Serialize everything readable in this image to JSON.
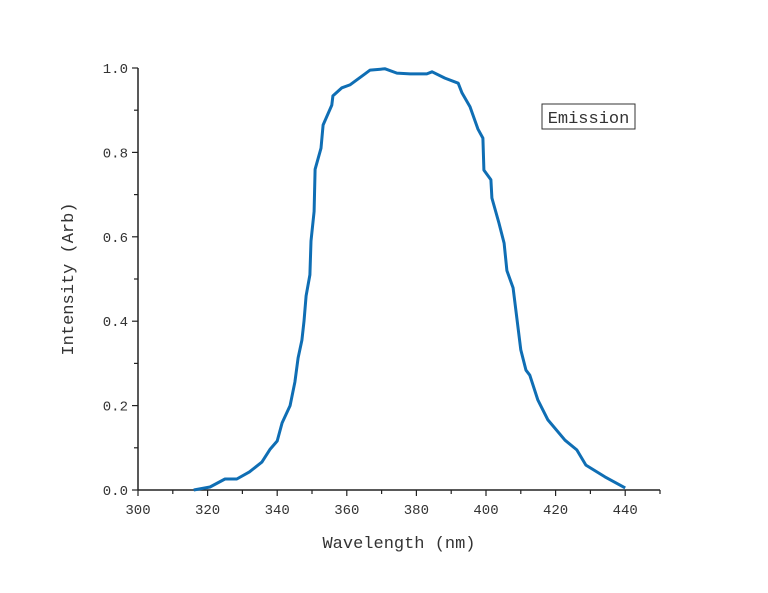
{
  "chart_data": {
    "type": "line",
    "title": "",
    "xlabel": "Wavelength (nm)",
    "ylabel": "Intensity (Arb)",
    "xlim": [
      300,
      450
    ],
    "ylim": [
      0,
      1.0
    ],
    "x_ticks": [
      300,
      320,
      340,
      360,
      380,
      400,
      420,
      440
    ],
    "x_tick_labels": [
      "300",
      "320",
      "340",
      "360",
      "380",
      "400",
      "420",
      "440"
    ],
    "y_ticks": [
      0,
      0.2,
      0.4,
      0.6,
      0.8,
      1.0
    ],
    "y_tick_labels": [
      "0.0",
      "0.2",
      "0.4",
      "0.6",
      "0.8",
      "1.0"
    ],
    "grid": false,
    "legend_position": "top-right",
    "series": [
      {
        "name": "Emission",
        "color": "#0F6EB4",
        "x": [
          316,
          320.7,
          325,
          328.4,
          332,
          335.6,
          338,
          340,
          341.4,
          343.7,
          345.1,
          346,
          347.1,
          347.7,
          348.3,
          349.4,
          349.7,
          350.6,
          350.9,
          352.6,
          353.2,
          355.7,
          356,
          358.6,
          360.9,
          365.2,
          366.7,
          371,
          374.4,
          378.2,
          383,
          384.5,
          388.2,
          392,
          393.1,
          395.4,
          397.7,
          399.1,
          399.4,
          401.4,
          401.7,
          403.7,
          405.2,
          406,
          407.8,
          410,
          411.5,
          412.6,
          414.9,
          417.8,
          422.7,
          426.1,
          428.7,
          434.2,
          440
        ],
        "y": [
          0,
          0.007,
          0.026,
          0.026,
          0.043,
          0.066,
          0.097,
          0.116,
          0.159,
          0.2,
          0.256,
          0.313,
          0.355,
          0.4,
          0.46,
          0.51,
          0.59,
          0.66,
          0.76,
          0.81,
          0.865,
          0.912,
          0.934,
          0.953,
          0.96,
          0.986,
          0.995,
          0.998,
          0.988,
          0.986,
          0.986,
          0.991,
          0.976,
          0.964,
          0.941,
          0.908,
          0.855,
          0.834,
          0.758,
          0.735,
          0.692,
          0.633,
          0.585,
          0.52,
          0.479,
          0.332,
          0.284,
          0.272,
          0.213,
          0.166,
          0.118,
          0.095,
          0.059,
          0.031,
          0.005
        ]
      }
    ]
  }
}
